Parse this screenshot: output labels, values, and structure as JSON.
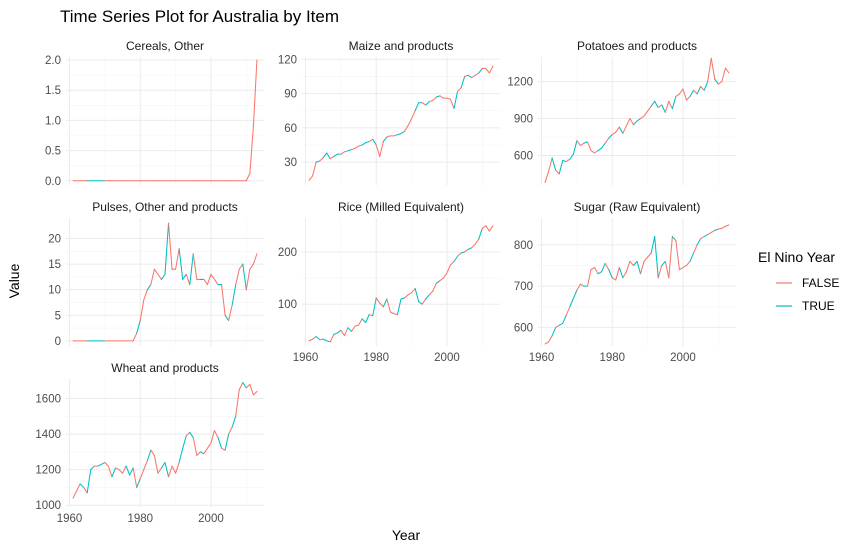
{
  "chart_data": {
    "type": "line",
    "title": "Time Series Plot for Australia by Item",
    "xlabel": "Year",
    "ylabel": "Value",
    "legend": {
      "title": "El Nino Year",
      "placement": "right",
      "entries": [
        {
          "label": "FALSE",
          "color": "#F8766D"
        },
        {
          "label": "TRUE",
          "color": "#00BFC4"
        }
      ]
    },
    "grid": true,
    "el_nino_years": [
      1963,
      1965,
      1966,
      1968,
      1969,
      1972,
      1976,
      1977,
      1979,
      1982,
      1986,
      1987,
      1991,
      1992,
      1994,
      1997,
      2002,
      2004,
      2006,
      2009
    ],
    "facets": [
      {
        "name": "Cereals, Other",
        "xlim": [
          1959,
          2015
        ],
        "ylim": [
          -0.07,
          2.05
        ],
        "xticks": [],
        "yticks": [
          0,
          0.5,
          1,
          1.5,
          2
        ],
        "ytick_labels": [
          "0.0",
          "0.5",
          "1.0",
          "1.5",
          "2.0"
        ],
        "x": [
          1961,
          1965,
          1970,
          1975,
          1980,
          1985,
          1990,
          1995,
          2000,
          2005,
          2010,
          2011,
          2012,
          2013
        ],
        "y": [
          0,
          0,
          0,
          0,
          0,
          0,
          0,
          0,
          0,
          0,
          0,
          0.12,
          0.9,
          2.0
        ]
      },
      {
        "name": "Maize and products",
        "xlim": [
          1959,
          2015
        ],
        "ylim": [
          10,
          122
        ],
        "xticks": [],
        "yticks": [
          30,
          60,
          90,
          120
        ],
        "ytick_labels": [
          "30",
          "60",
          "90",
          "120"
        ],
        "x": [
          1961,
          1962,
          1963,
          1964,
          1965,
          1966,
          1967,
          1968,
          1969,
          1970,
          1971,
          1972,
          1973,
          1974,
          1975,
          1976,
          1977,
          1978,
          1979,
          1980,
          1981,
          1982,
          1983,
          1984,
          1985,
          1986,
          1987,
          1988,
          1989,
          1990,
          1991,
          1992,
          1993,
          1994,
          1995,
          1996,
          1997,
          1998,
          1999,
          2000,
          2001,
          2002,
          2003,
          2004,
          2005,
          2006,
          2007,
          2008,
          2009,
          2010,
          2011,
          2012,
          2013
        ],
        "y": [
          14,
          18,
          30,
          31,
          34,
          38,
          33,
          35,
          37,
          37,
          39,
          40,
          41,
          42,
          44,
          45,
          47,
          48,
          50,
          45,
          35,
          48,
          52,
          53,
          53,
          54,
          55,
          57,
          62,
          68,
          75,
          82,
          82,
          80,
          83,
          84,
          87,
          88,
          86,
          86,
          85,
          77,
          92,
          95,
          105,
          106,
          104,
          106,
          108,
          112,
          112,
          108,
          114
        ]
      },
      {
        "name": "Potatoes and products",
        "xlim": [
          1959,
          2015
        ],
        "ylim": [
          360,
          1400
        ],
        "xticks": [],
        "yticks": [
          600,
          900,
          1200
        ],
        "ytick_labels": [
          "600",
          "900",
          "1200"
        ],
        "x": [
          1961,
          1962,
          1963,
          1964,
          1965,
          1966,
          1967,
          1968,
          1969,
          1970,
          1971,
          1972,
          1973,
          1974,
          1975,
          1976,
          1977,
          1978,
          1979,
          1980,
          1981,
          1982,
          1983,
          1984,
          1985,
          1986,
          1987,
          1988,
          1989,
          1990,
          1991,
          1992,
          1993,
          1994,
          1995,
          1996,
          1997,
          1998,
          1999,
          2000,
          2001,
          2002,
          2003,
          2004,
          2005,
          2006,
          2007,
          2008,
          2009,
          2010,
          2011,
          2012,
          2013
        ],
        "y": [
          380,
          470,
          580,
          480,
          450,
          560,
          550,
          570,
          610,
          720,
          680,
          700,
          710,
          640,
          620,
          640,
          660,
          700,
          740,
          770,
          790,
          830,
          780,
          840,
          900,
          850,
          880,
          900,
          920,
          960,
          1000,
          1040,
          990,
          1010,
          950,
          1040,
          980,
          1080,
          1100,
          1140,
          1050,
          1080,
          1130,
          1100,
          1160,
          1130,
          1200,
          1390,
          1220,
          1180,
          1200,
          1310,
          1270
        ]
      },
      {
        "name": "Pulses, Other and products",
        "xlim": [
          1959,
          2015
        ],
        "ylim": [
          -1,
          24
        ],
        "xticks": [],
        "yticks": [
          0,
          5,
          10,
          15,
          20
        ],
        "ytick_labels": [
          "0",
          "5",
          "10",
          "15",
          "20"
        ],
        "x": [
          1961,
          1965,
          1970,
          1975,
          1978,
          1979,
          1980,
          1981,
          1982,
          1983,
          1984,
          1985,
          1986,
          1987,
          1988,
          1989,
          1990,
          1991,
          1992,
          1993,
          1994,
          1995,
          1996,
          1997,
          1998,
          1999,
          2000,
          2001,
          2002,
          2003,
          2004,
          2005,
          2006,
          2007,
          2008,
          2009,
          2010,
          2011,
          2012,
          2013
        ],
        "y": [
          0,
          0,
          0,
          0,
          0,
          1.5,
          4,
          8,
          10,
          11,
          14,
          13,
          12,
          13,
          23,
          14,
          14,
          18,
          12,
          13,
          11,
          17,
          12,
          12,
          12,
          11,
          13,
          12,
          11,
          11,
          5,
          4,
          7,
          11,
          14,
          15,
          10,
          14,
          15,
          17
        ]
      },
      {
        "name": "Rice (Milled Equivalent)",
        "xlim": [
          1959,
          2015
        ],
        "ylim": [
          20,
          265
        ],
        "xticks": [
          1960,
          1980,
          2000
        ],
        "yticks": [
          100,
          200
        ],
        "ytick_labels": [
          "100",
          "200"
        ],
        "x": [
          1961,
          1962,
          1963,
          1964,
          1965,
          1966,
          1967,
          1968,
          1969,
          1970,
          1971,
          1972,
          1973,
          1974,
          1975,
          1976,
          1977,
          1978,
          1979,
          1980,
          1981,
          1982,
          1983,
          1984,
          1985,
          1986,
          1987,
          1988,
          1989,
          1990,
          1991,
          1992,
          1993,
          1994,
          1995,
          1996,
          1997,
          1998,
          1999,
          2000,
          2001,
          2002,
          2003,
          2004,
          2005,
          2006,
          2007,
          2008,
          2009,
          2010,
          2011,
          2012,
          2013
        ],
        "y": [
          30,
          33,
          38,
          32,
          33,
          30,
          28,
          42,
          45,
          50,
          40,
          55,
          48,
          58,
          60,
          72,
          65,
          80,
          78,
          112,
          102,
          95,
          110,
          85,
          82,
          80,
          110,
          112,
          118,
          122,
          130,
          105,
          100,
          110,
          118,
          125,
          140,
          145,
          150,
          160,
          175,
          182,
          192,
          198,
          200,
          205,
          208,
          215,
          225,
          245,
          250,
          240,
          250
        ]
      },
      {
        "name": "Sugar (Raw Equivalent)",
        "xlim": [
          1959,
          2015
        ],
        "ylim": [
          555,
          865
        ],
        "xticks": [
          1960,
          1980,
          2000
        ],
        "yticks": [
          600,
          700,
          800
        ],
        "ytick_labels": [
          "600",
          "700",
          "800"
        ],
        "x": [
          1961,
          1962,
          1963,
          1964,
          1965,
          1966,
          1967,
          1968,
          1969,
          1970,
          1971,
          1972,
          1973,
          1974,
          1975,
          1976,
          1977,
          1978,
          1979,
          1980,
          1981,
          1982,
          1983,
          1984,
          1985,
          1986,
          1987,
          1988,
          1989,
          1990,
          1991,
          1992,
          1993,
          1994,
          1995,
          1996,
          1997,
          1998,
          1999,
          2000,
          2001,
          2002,
          2003,
          2004,
          2005,
          2006,
          2007,
          2008,
          2009,
          2010,
          2011,
          2012,
          2013
        ],
        "y": [
          560,
          565,
          580,
          600,
          605,
          610,
          630,
          650,
          670,
          690,
          705,
          700,
          700,
          740,
          745,
          730,
          735,
          755,
          740,
          720,
          715,
          745,
          720,
          735,
          760,
          750,
          760,
          730,
          760,
          770,
          780,
          820,
          720,
          750,
          760,
          720,
          820,
          810,
          740,
          745,
          750,
          760,
          780,
          800,
          815,
          820,
          825,
          830,
          835,
          838,
          840,
          845,
          848
        ]
      },
      {
        "name": "Wheat and products",
        "xlim": [
          1959,
          2015
        ],
        "ylim": [
          990,
          1710
        ],
        "xticks": [
          1960,
          1980,
          2000
        ],
        "yticks": [
          1000,
          1200,
          1400,
          1600
        ],
        "ytick_labels": [
          "1000",
          "1200",
          "1400",
          "1600"
        ],
        "x": [
          1961,
          1962,
          1963,
          1964,
          1965,
          1966,
          1967,
          1968,
          1969,
          1970,
          1971,
          1972,
          1973,
          1974,
          1975,
          1976,
          1977,
          1978,
          1979,
          1980,
          1981,
          1982,
          1983,
          1984,
          1985,
          1986,
          1987,
          1988,
          1989,
          1990,
          1991,
          1992,
          1993,
          1994,
          1995,
          1996,
          1997,
          1998,
          1999,
          2000,
          2001,
          2002,
          2003,
          2004,
          2005,
          2006,
          2007,
          2008,
          2009,
          2010,
          2011,
          2012,
          2013
        ],
        "y": [
          1040,
          1080,
          1120,
          1100,
          1070,
          1200,
          1220,
          1220,
          1230,
          1240,
          1220,
          1160,
          1210,
          1200,
          1180,
          1220,
          1170,
          1210,
          1100,
          1150,
          1200,
          1250,
          1310,
          1280,
          1180,
          1210,
          1240,
          1160,
          1220,
          1180,
          1240,
          1320,
          1390,
          1410,
          1380,
          1280,
          1300,
          1290,
          1320,
          1350,
          1420,
          1380,
          1320,
          1310,
          1400,
          1440,
          1500,
          1650,
          1690,
          1660,
          1680,
          1620,
          1640
        ]
      }
    ]
  }
}
